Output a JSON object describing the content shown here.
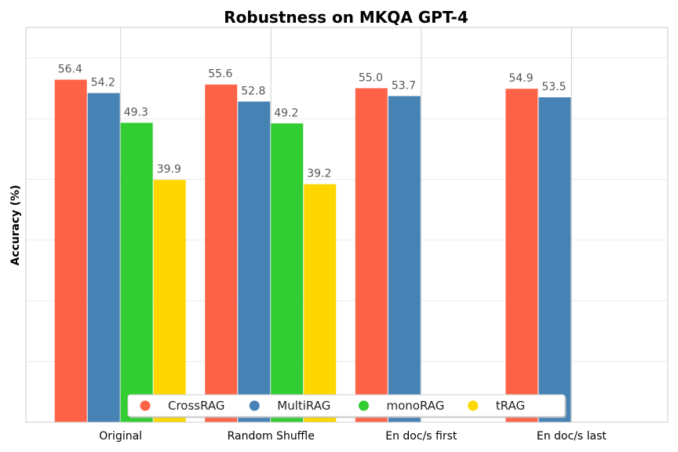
{
  "chart_data": {
    "type": "bar",
    "title": "Robustness on MKQA GPT-4",
    "xlabel": "",
    "ylabel": "Accuracy (%)",
    "categories": [
      "Original",
      "Random Shuffle",
      "En doc/s first",
      "En doc/s last"
    ],
    "ylim": [
      0,
      65
    ],
    "grid": true,
    "legend_position": "bottom-center",
    "series": [
      {
        "name": "CrossRAG",
        "color": "#ff6347",
        "values": [
          56.4,
          55.6,
          55.0,
          54.9
        ]
      },
      {
        "name": "MultiRAG",
        "color": "#4682b4",
        "values": [
          54.2,
          52.8,
          53.7,
          53.5
        ]
      },
      {
        "name": "monoRAG",
        "color": "#32cd32",
        "values": [
          49.3,
          49.2,
          null,
          null
        ]
      },
      {
        "name": "tRAG",
        "color": "#ffd700",
        "values": [
          39.9,
          39.2,
          null,
          null
        ]
      }
    ]
  }
}
